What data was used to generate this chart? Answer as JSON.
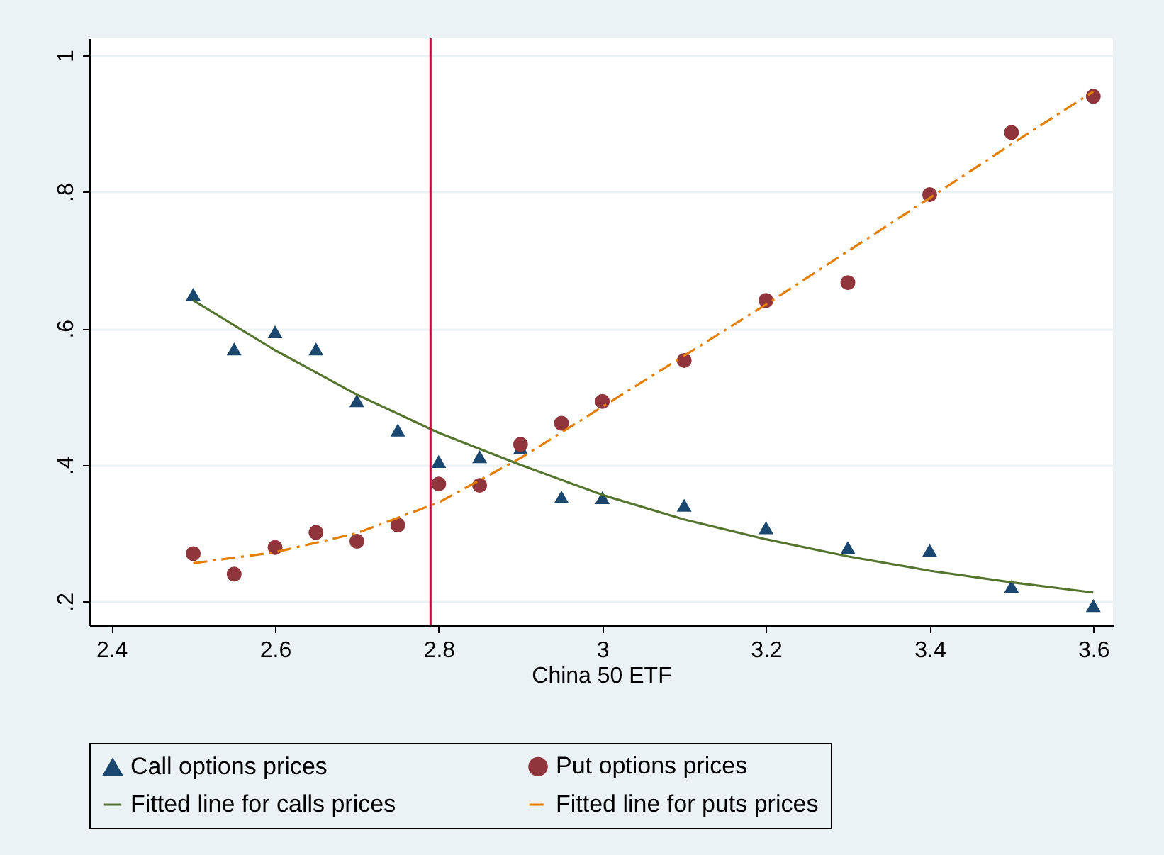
{
  "chart_data": {
    "type": "scatter",
    "xlabel": "China 50 ETF",
    "xlim": [
      2.373,
      3.624
    ],
    "xticks": [
      2.4,
      2.6,
      2.8,
      3,
      3.2,
      3.4,
      3.6
    ],
    "ylim": [
      0.165,
      1.025
    ],
    "yticks": [
      {
        "value": 0.2,
        "label": ".2"
      },
      {
        "value": 0.4,
        "label": ".4"
      },
      {
        "value": 0.6,
        "label": ".6"
      },
      {
        "value": 0.8,
        "label": ".8"
      },
      {
        "value": 1,
        "label": "1"
      }
    ],
    "grid": "y",
    "legend": "bottom",
    "ref_lines": [
      {
        "axis": "x",
        "value": 2.79,
        "color": "#b5123d"
      }
    ],
    "series": [
      {
        "name": "Call options prices",
        "type": "scatter",
        "marker": "triangle",
        "color": "#1a476f",
        "x": [
          2.5,
          2.55,
          2.6,
          2.65,
          2.7,
          2.75,
          2.8,
          2.85,
          2.9,
          2.95,
          3,
          3.1,
          3.2,
          3.3,
          3.4,
          3.5,
          3.6
        ],
        "values": [
          0.65,
          0.57,
          0.595,
          0.57,
          0.494,
          0.451,
          0.405,
          0.412,
          0.425,
          0.353,
          0.352,
          0.341,
          0.308,
          0.279,
          0.275,
          0.222,
          0.194
        ]
      },
      {
        "name": "Put options prices",
        "type": "scatter",
        "marker": "circle",
        "color": "#90353b",
        "x": [
          2.5,
          2.55,
          2.6,
          2.65,
          2.7,
          2.75,
          2.8,
          2.85,
          2.9,
          2.95,
          3,
          3.1,
          3.2,
          3.3,
          3.4,
          3.5,
          3.6
        ],
        "values": [
          0.27,
          0.24,
          0.279,
          0.301,
          0.288,
          0.312,
          0.372,
          0.37,
          0.43,
          0.461,
          0.493,
          0.553,
          0.641,
          0.667,
          0.796,
          0.887,
          0.94
        ]
      },
      {
        "name": "Fitted line for calls prices",
        "type": "line",
        "line_style": "solid",
        "color": "#55752f",
        "x": [
          2.5,
          2.6,
          2.7,
          2.8,
          2.9,
          3,
          3.1,
          3.2,
          3.3,
          3.4,
          3.5,
          3.6
        ],
        "values": [
          0.641,
          0.568,
          0.503,
          0.447,
          0.4,
          0.356,
          0.32,
          0.291,
          0.266,
          0.245,
          0.228,
          0.213
        ]
      },
      {
        "name": "Fitted line for puts prices",
        "type": "line",
        "line_style": "dashed",
        "color": "#e37e00",
        "x": [
          2.5,
          2.6,
          2.7,
          2.8,
          2.9,
          3,
          3.1,
          3.2,
          3.3,
          3.4,
          3.5,
          3.6
        ],
        "values": [
          0.256,
          0.272,
          0.3,
          0.345,
          0.41,
          0.485,
          0.56,
          0.635,
          0.713,
          0.791,
          0.87,
          0.947
        ]
      }
    ]
  }
}
